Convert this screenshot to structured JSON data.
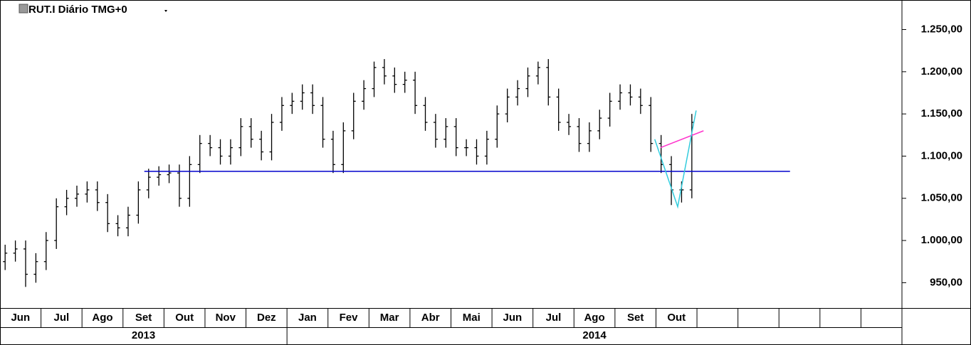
{
  "chart_data": {
    "type": "ohlc",
    "title": "RUT.I Diário TMG+0",
    "categories": [
      "Jun",
      "Jul",
      "Ago",
      "Set",
      "Out",
      "Nov",
      "Dez",
      "Jan",
      "Fev",
      "Mar",
      "Abr",
      "Mai",
      "Jun",
      "Jul",
      "Ago",
      "Set",
      "Out",
      null,
      null,
      null,
      null,
      null
    ],
    "years": [
      "2013",
      "2014"
    ],
    "xlim": [
      0,
      22
    ],
    "ylim": [
      920,
      1285
    ],
    "yticks": [
      {
        "value": 950,
        "label": "950,00"
      },
      {
        "value": 1000,
        "label": "1.000,00"
      },
      {
        "value": 1050,
        "label": "1.050,00"
      },
      {
        "value": 1100,
        "label": "1.100,00"
      },
      {
        "value": 1150,
        "label": "1.150,00"
      },
      {
        "value": 1200,
        "label": "1.200,00"
      },
      {
        "value": 1250,
        "label": "1.250,00"
      }
    ],
    "color": "#000000",
    "open": [
      975,
      985,
      990,
      960,
      975,
      1000,
      1040,
      1050,
      1055,
      1060,
      1045,
      1020,
      1015,
      1030,
      1060,
      1075,
      1078,
      1080,
      1050,
      1090,
      1115,
      1110,
      1100,
      1110,
      1135,
      1120,
      1105,
      1140,
      1160,
      1165,
      1175,
      1160,
      1120,
      1090,
      1130,
      1165,
      1180,
      1205,
      1195,
      1185,
      1190,
      1160,
      1140,
      1120,
      1135,
      1110,
      1110,
      1100,
      1120,
      1150,
      1170,
      1180,
      1195,
      1205,
      1170,
      1140,
      1135,
      1115,
      1130,
      1145,
      1165,
      1175,
      1170,
      1160,
      1115,
      1090,
      1060,
      1060
    ],
    "high": [
      995,
      1000,
      1000,
      985,
      1010,
      1050,
      1060,
      1065,
      1070,
      1070,
      1055,
      1030,
      1040,
      1070,
      1085,
      1088,
      1090,
      1090,
      1100,
      1125,
      1125,
      1120,
      1120,
      1145,
      1145,
      1130,
      1150,
      1170,
      1175,
      1185,
      1185,
      1170,
      1130,
      1140,
      1175,
      1190,
      1212,
      1215,
      1205,
      1200,
      1200,
      1170,
      1150,
      1145,
      1145,
      1120,
      1120,
      1130,
      1160,
      1180,
      1190,
      1205,
      1212,
      1215,
      1180,
      1150,
      1145,
      1140,
      1155,
      1175,
      1185,
      1185,
      1180,
      1170,
      1125,
      1100,
      1070,
      1150
    ],
    "low": [
      965,
      975,
      945,
      950,
      965,
      990,
      1030,
      1040,
      1045,
      1035,
      1010,
      1005,
      1005,
      1020,
      1050,
      1065,
      1068,
      1040,
      1040,
      1080,
      1100,
      1090,
      1090,
      1100,
      1110,
      1095,
      1095,
      1130,
      1150,
      1155,
      1150,
      1110,
      1080,
      1080,
      1120,
      1155,
      1170,
      1185,
      1175,
      1175,
      1150,
      1130,
      1110,
      1110,
      1100,
      1100,
      1090,
      1090,
      1110,
      1140,
      1160,
      1170,
      1185,
      1160,
      1130,
      1125,
      1105,
      1105,
      1120,
      1135,
      1155,
      1160,
      1150,
      1105,
      1080,
      1042,
      1045,
      1050
    ],
    "close": [
      985,
      990,
      960,
      975,
      1000,
      1040,
      1050,
      1055,
      1060,
      1045,
      1020,
      1015,
      1030,
      1060,
      1075,
      1078,
      1080,
      1050,
      1090,
      1115,
      1110,
      1100,
      1110,
      1135,
      1120,
      1105,
      1140,
      1160,
      1165,
      1175,
      1160,
      1120,
      1090,
      1130,
      1165,
      1180,
      1205,
      1195,
      1185,
      1190,
      1160,
      1140,
      1120,
      1135,
      1110,
      1110,
      1100,
      1120,
      1150,
      1170,
      1180,
      1195,
      1205,
      1170,
      1140,
      1135,
      1115,
      1130,
      1145,
      1165,
      1175,
      1170,
      1160,
      1115,
      1090,
      1060,
      1060,
      1140
    ],
    "trendlines": [
      {
        "color": "#0000cc",
        "x": [
          3.52,
          19.27
        ],
        "values": [
          1082,
          1082
        ]
      },
      {
        "color": "#ff33cc",
        "x": [
          16.11,
          17.16
        ],
        "values": [
          1110,
          1130
        ]
      },
      {
        "color": "#33ccdd",
        "x": [
          15.97,
          16.53,
          16.98
        ],
        "values": [
          1120,
          1040,
          1154
        ]
      }
    ]
  }
}
